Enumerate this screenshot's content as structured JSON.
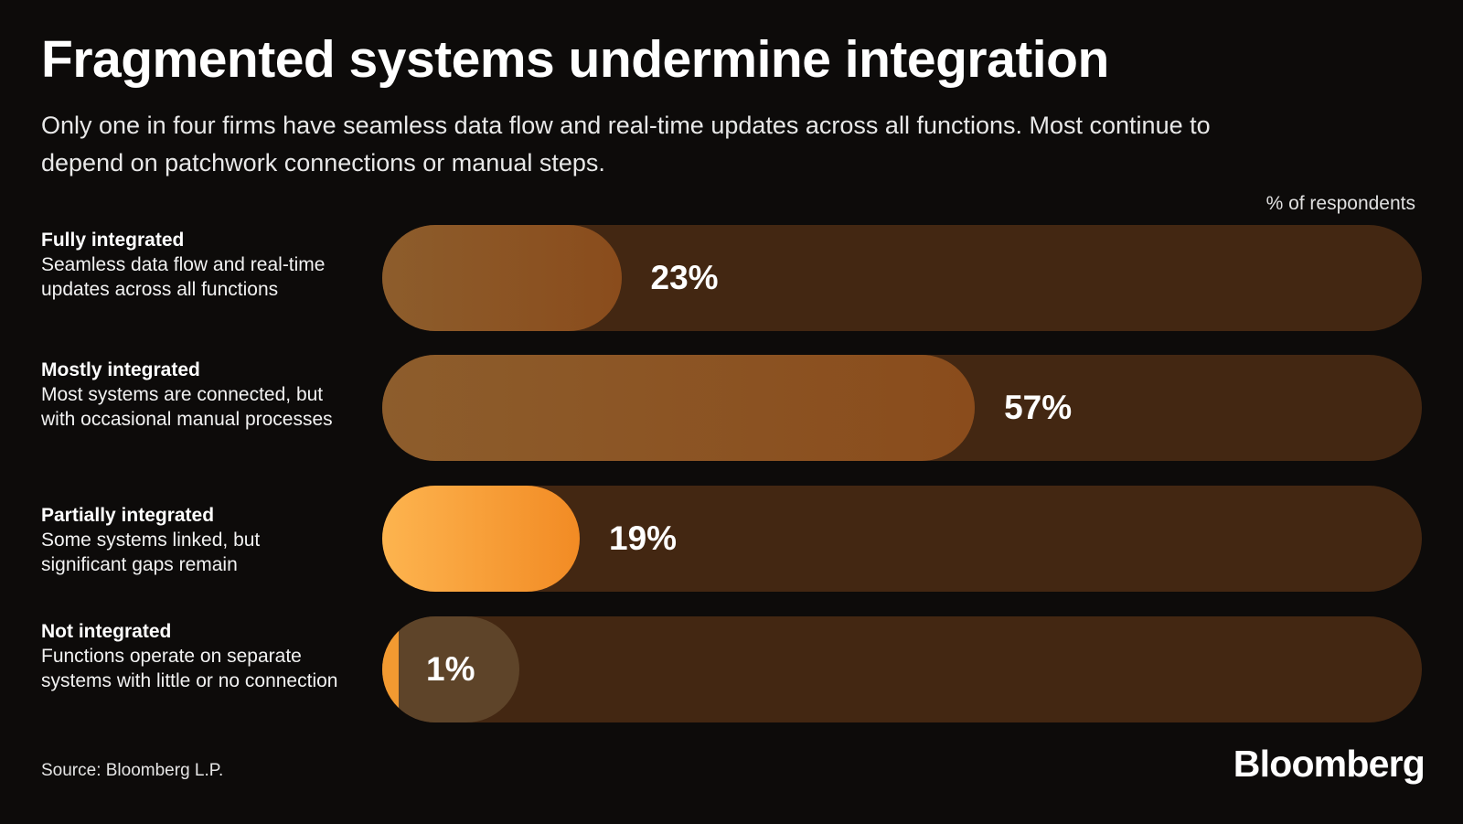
{
  "title": "Fragmented systems undermine integration",
  "subtitle": "Only one in four firms have seamless data flow and real-time updates across all functions. Most continue to depend on patchwork connections or manual steps.",
  "unit_label": "% of respondents",
  "source": "Source: Bloomberg L.P.",
  "logo": "Bloomberg",
  "colors": {
    "background": "#0d0b0a",
    "track": "#432712",
    "muted_bar": "#8c5526",
    "highlight_bar": "#f7a03a",
    "small_value_bubble": "#5e4429"
  },
  "chart_data": {
    "type": "bar",
    "orientation": "horizontal",
    "categories": [
      "Fully integrated",
      "Mostly integrated",
      "Partially integrated",
      "Not integrated"
    ],
    "descriptions": [
      "Seamless data flow and real-time updates across all functions",
      "Most systems are connected, but with occasional manual processes",
      "Some systems linked, but significant gaps remain",
      "Functions operate on separate systems with little or no connection"
    ],
    "values": [
      23,
      57,
      19,
      1
    ],
    "value_labels": [
      "23%",
      "57%",
      "19%",
      "1%"
    ],
    "highlighted": [
      false,
      false,
      true,
      false
    ],
    "xlim": [
      0,
      100
    ],
    "grid": false,
    "legend": "none"
  }
}
